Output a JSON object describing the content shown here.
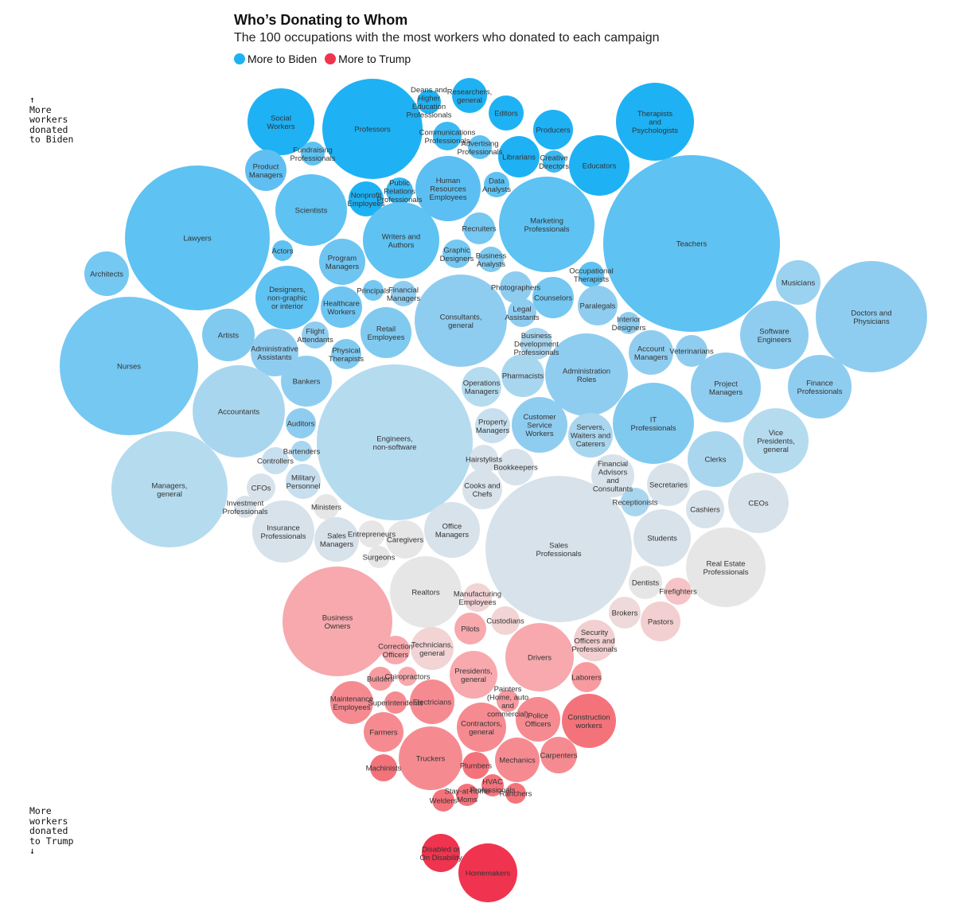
{
  "header": {
    "title": "Who’s Donating to Whom",
    "subtitle": "The 100 occupations with the most workers who donated to each campaign"
  },
  "legend": {
    "biden": {
      "label": "More to Biden",
      "color": "#1eb2f4"
    },
    "trump": {
      "label": "More to Trump",
      "color": "#f0344f"
    }
  },
  "axis": {
    "top": {
      "arrow": "↑",
      "label": "More\nworkers\ndonated\nto Biden"
    },
    "bottom": {
      "arrow": "↓",
      "label": "More\nworkers\ndonated\nto Trump"
    }
  },
  "chart_data": {
    "type": "bubble",
    "encoding": "Circle size = relative number of donating workers in each occupation; color from strong blue (more to Biden) through gray to strong red (more to Trump)",
    "occupations": [
      {
        "name": "Social Workers",
        "lean": "biden",
        "color": "#1eb2f4"
      },
      {
        "name": "Professors",
        "lean": "biden",
        "color": "#1eb2f4"
      },
      {
        "name": "Deans and Higher Education Professionals",
        "lean": "biden",
        "color": "#1eb2f4"
      },
      {
        "name": "Researchers, general",
        "lean": "biden",
        "color": "#1eb2f4"
      },
      {
        "name": "Editors",
        "lean": "biden",
        "color": "#1eb2f4"
      },
      {
        "name": "Producers",
        "lean": "biden",
        "color": "#1eb2f4"
      },
      {
        "name": "Therapists and Psychologists",
        "lean": "biden",
        "color": "#1eb2f4"
      },
      {
        "name": "Communications Professionals",
        "lean": "biden",
        "color": "#3bb9f3"
      },
      {
        "name": "Advertising Professionals",
        "lean": "biden",
        "color": "#5ec2f2"
      },
      {
        "name": "Fundraising Professionals",
        "lean": "biden",
        "color": "#5ec2f2"
      },
      {
        "name": "Librarians",
        "lean": "biden",
        "color": "#1eb2f4"
      },
      {
        "name": "Creative Directors",
        "lean": "biden",
        "color": "#3bb9f3"
      },
      {
        "name": "Educators",
        "lean": "biden",
        "color": "#1eb2f4"
      },
      {
        "name": "Product Managers",
        "lean": "biden",
        "color": "#60bff2"
      },
      {
        "name": "Nonprofit Employees",
        "lean": "biden",
        "color": "#1eb2f4"
      },
      {
        "name": "Public Relations Professionals",
        "lean": "biden",
        "color": "#3bb9f3"
      },
      {
        "name": "Human Resources Employees",
        "lean": "biden",
        "color": "#5cbff3"
      },
      {
        "name": "Data Analysts",
        "lean": "biden",
        "color": "#5ec2f2"
      },
      {
        "name": "Scientists",
        "lean": "biden",
        "color": "#5ec2f2"
      },
      {
        "name": "Lawyers",
        "lean": "biden",
        "color": "#5ec2f2"
      },
      {
        "name": "Teachers",
        "lean": "biden",
        "color": "#5ec2f2"
      },
      {
        "name": "Writers and Authors",
        "lean": "biden",
        "color": "#5ec2f2"
      },
      {
        "name": "Marketing Professionals",
        "lean": "biden",
        "color": "#5ec2f2"
      },
      {
        "name": "Recruiters",
        "lean": "biden",
        "color": "#74c8f2"
      },
      {
        "name": "Actors",
        "lean": "biden",
        "color": "#5ec2f2"
      },
      {
        "name": "Program Managers",
        "lean": "biden",
        "color": "#6ec5f2"
      },
      {
        "name": "Graphic Designers",
        "lean": "biden",
        "color": "#74c8f2"
      },
      {
        "name": "Business Analysts",
        "lean": "biden",
        "color": "#80caf0"
      },
      {
        "name": "Architects",
        "lean": "biden",
        "color": "#74c8f2"
      },
      {
        "name": "Occupational Therapists",
        "lean": "biden",
        "color": "#5ec2f2"
      },
      {
        "name": "Musicians",
        "lean": "biden",
        "color": "#9ad2f0"
      },
      {
        "name": "Designers, non-graphic or interior",
        "lean": "biden",
        "color": "#5ec2f2"
      },
      {
        "name": "Principals",
        "lean": "biden",
        "color": "#74c8f2"
      },
      {
        "name": "Financial Managers",
        "lean": "biden",
        "color": "#8fcdf0"
      },
      {
        "name": "Photographers",
        "lean": "biden",
        "color": "#8fcdf0"
      },
      {
        "name": "Counselors",
        "lean": "biden",
        "color": "#74c8f2"
      },
      {
        "name": "Paralegals",
        "lean": "biden",
        "color": "#8fcdf0"
      },
      {
        "name": "Doctors and Physicians",
        "lean": "biden",
        "color": "#8fcdf0"
      },
      {
        "name": "Healthcare Workers",
        "lean": "biden",
        "color": "#6ec5f2"
      },
      {
        "name": "Legal Assistants",
        "lean": "biden",
        "color": "#8fcdf0"
      },
      {
        "name": "Interior Designers",
        "lean": "biden",
        "color": "#8fcdf0"
      },
      {
        "name": "Consultants, general",
        "lean": "biden",
        "color": "#8fcdf0"
      },
      {
        "name": "Nurses",
        "lean": "biden",
        "color": "#74c8f2"
      },
      {
        "name": "Artists",
        "lean": "biden",
        "color": "#80caf0"
      },
      {
        "name": "Flight Attendants",
        "lean": "biden",
        "color": "#8fcdf0"
      },
      {
        "name": "Retail Employees",
        "lean": "biden",
        "color": "#80caf0"
      },
      {
        "name": "Software Engineers",
        "lean": "biden",
        "color": "#8fcdf0"
      },
      {
        "name": "Administrative Assistants",
        "lean": "biden",
        "color": "#8fcdf0"
      },
      {
        "name": "Physical Therapists",
        "lean": "biden",
        "color": "#80caf0"
      },
      {
        "name": "Business Development Professionals",
        "lean": "biden",
        "color": "#a9d6ef"
      },
      {
        "name": "Account Managers",
        "lean": "biden",
        "color": "#8fcdf0"
      },
      {
        "name": "Veterinarians",
        "lean": "biden",
        "color": "#8fcdf0"
      },
      {
        "name": "Administration Roles",
        "lean": "biden",
        "color": "#8fcdf0"
      },
      {
        "name": "Pharmacists",
        "lean": "biden",
        "color": "#a9d6ef"
      },
      {
        "name": "Bankers",
        "lean": "biden",
        "color": "#8fcdf0"
      },
      {
        "name": "Project Managers",
        "lean": "biden",
        "color": "#8fcdf0"
      },
      {
        "name": "Finance Professionals",
        "lean": "biden",
        "color": "#8fcdf0"
      },
      {
        "name": "Accountants",
        "lean": "biden",
        "color": "#a9d6ef"
      },
      {
        "name": "Operations Managers",
        "lean": "biden",
        "color": "#b5dbef"
      },
      {
        "name": "Auditors",
        "lean": "biden",
        "color": "#8fcdf0"
      },
      {
        "name": "Engineers, non-software",
        "lean": "biden",
        "color": "#b5dbef"
      },
      {
        "name": "Customer Service Workers",
        "lean": "biden",
        "color": "#8fcdf0"
      },
      {
        "name": "IT Professionals",
        "lean": "biden",
        "color": "#80caf0"
      },
      {
        "name": "Property Managers",
        "lean": "biden",
        "color": "#c7dfee"
      },
      {
        "name": "Servers, Waiters and Caterers",
        "lean": "biden",
        "color": "#a9d6ef"
      },
      {
        "name": "Vice Presidents, general",
        "lean": "biden",
        "color": "#b5dbef"
      },
      {
        "name": "Bartenders",
        "lean": "biden",
        "color": "#a9d6ef"
      },
      {
        "name": "Clerks",
        "lean": "biden",
        "color": "#a9d6ef"
      },
      {
        "name": "Controllers",
        "lean": "biden",
        "color": "#c7dfee"
      },
      {
        "name": "Hairstylists",
        "lean": "neutral",
        "color": "#d8e2ea"
      },
      {
        "name": "Financial Advisors and Consultants",
        "lean": "neutral",
        "color": "#d8e2ea"
      },
      {
        "name": "Managers, general",
        "lean": "biden",
        "color": "#b5dbef"
      },
      {
        "name": "Military Personnel",
        "lean": "biden",
        "color": "#c7dfee"
      },
      {
        "name": "CFOs",
        "lean": "neutral",
        "color": "#d8e2ea"
      },
      {
        "name": "Bookkeepers",
        "lean": "neutral",
        "color": "#d8e2ea"
      },
      {
        "name": "Secretaries",
        "lean": "neutral",
        "color": "#d8e2ea"
      },
      {
        "name": "Cooks and Chefs",
        "lean": "neutral",
        "color": "#d8e2ea"
      },
      {
        "name": "Receptionists",
        "lean": "biden",
        "color": "#a9d6ef"
      },
      {
        "name": "Cashiers",
        "lean": "neutral",
        "color": "#d8e2ea"
      },
      {
        "name": "CEOs",
        "lean": "neutral",
        "color": "#d8e2ea"
      },
      {
        "name": "Investment Professionals",
        "lean": "neutral",
        "color": "#d8e2ea"
      },
      {
        "name": "Ministers",
        "lean": "neutral",
        "color": "#e6e6e6"
      },
      {
        "name": "Insurance Professionals",
        "lean": "neutral",
        "color": "#d8e2ea"
      },
      {
        "name": "Office Managers",
        "lean": "neutral",
        "color": "#d8e2ea"
      },
      {
        "name": "Sales Managers",
        "lean": "neutral",
        "color": "#d8e2ea"
      },
      {
        "name": "Entrepreneurs",
        "lean": "neutral",
        "color": "#e6e6e6"
      },
      {
        "name": "Caregivers",
        "lean": "neutral",
        "color": "#e6e6e6"
      },
      {
        "name": "Sales Professionals",
        "lean": "neutral",
        "color": "#d8e2ea"
      },
      {
        "name": "Students",
        "lean": "neutral",
        "color": "#d8e2ea"
      },
      {
        "name": "Real Estate Professionals",
        "lean": "neutral",
        "color": "#e6e6e6"
      },
      {
        "name": "Surgeons",
        "lean": "neutral",
        "color": "#e6e6e6"
      },
      {
        "name": "Realtors",
        "lean": "neutral",
        "color": "#e6e6e6"
      },
      {
        "name": "Dentists",
        "lean": "neutral",
        "color": "#e6e6e6"
      },
      {
        "name": "Firefighters",
        "lean": "trump",
        "color": "#f6c4c6"
      },
      {
        "name": "Manufacturing Employees",
        "lean": "trump",
        "color": "#f2d4d5"
      },
      {
        "name": "Business Owners",
        "lean": "trump",
        "color": "#f7a9ad"
      },
      {
        "name": "Brokers",
        "lean": "trump",
        "color": "#eedada"
      },
      {
        "name": "Pastors",
        "lean": "trump",
        "color": "#f2cfd0"
      },
      {
        "name": "Custodians",
        "lean": "trump",
        "color": "#f2d4d5"
      },
      {
        "name": "Pilots",
        "lean": "trump",
        "color": "#f7a9ad"
      },
      {
        "name": "Technicians, general",
        "lean": "trump",
        "color": "#f2d4d5"
      },
      {
        "name": "Correction Officers",
        "lean": "trump",
        "color": "#f7a9ad"
      },
      {
        "name": "Drivers",
        "lean": "trump",
        "color": "#f7a9ad"
      },
      {
        "name": "Security Officers and Professionals",
        "lean": "trump",
        "color": "#f2cfd0"
      },
      {
        "name": "Presidents, general",
        "lean": "trump",
        "color": "#f7a9ad"
      },
      {
        "name": "Builders",
        "lean": "trump",
        "color": "#f79ba0"
      },
      {
        "name": "Chiropractors",
        "lean": "trump",
        "color": "#f7a9ad"
      },
      {
        "name": "Laborers",
        "lean": "trump",
        "color": "#f79ba0"
      },
      {
        "name": "Maintenance Employees",
        "lean": "trump",
        "color": "#f58b91"
      },
      {
        "name": "Superintendents",
        "lean": "trump",
        "color": "#f58b91"
      },
      {
        "name": "Electricians",
        "lean": "trump",
        "color": "#f58b91"
      },
      {
        "name": "Painters (Home, auto and commercial)",
        "lean": "trump",
        "color": "#f79ba0"
      },
      {
        "name": "Police Officers",
        "lean": "trump",
        "color": "#f58b91"
      },
      {
        "name": "Construction workers",
        "lean": "trump",
        "color": "#f4737b"
      },
      {
        "name": "Contractors, general",
        "lean": "trump",
        "color": "#f58b91"
      },
      {
        "name": "Farmers",
        "lean": "trump",
        "color": "#f58b91"
      },
      {
        "name": "Truckers",
        "lean": "trump",
        "color": "#f58b91"
      },
      {
        "name": "Mechanics",
        "lean": "trump",
        "color": "#f58b91"
      },
      {
        "name": "Carpenters",
        "lean": "trump",
        "color": "#f58b91"
      },
      {
        "name": "Machinists",
        "lean": "trump",
        "color": "#f4737b"
      },
      {
        "name": "Plumbers",
        "lean": "trump",
        "color": "#f4737b"
      },
      {
        "name": "HVAC Professionals",
        "lean": "trump",
        "color": "#f4737b"
      },
      {
        "name": "Stay-at-home Moms",
        "lean": "trump",
        "color": "#f4737b"
      },
      {
        "name": "Ranchers",
        "lean": "trump",
        "color": "#f4737b"
      },
      {
        "name": "Welders",
        "lean": "trump",
        "color": "#f4737b"
      },
      {
        "name": "Disabled or On Disability",
        "lean": "trump",
        "color": "#f0344f"
      },
      {
        "name": "Homemakers",
        "lean": "trump",
        "color": "#f0344f"
      }
    ]
  }
}
